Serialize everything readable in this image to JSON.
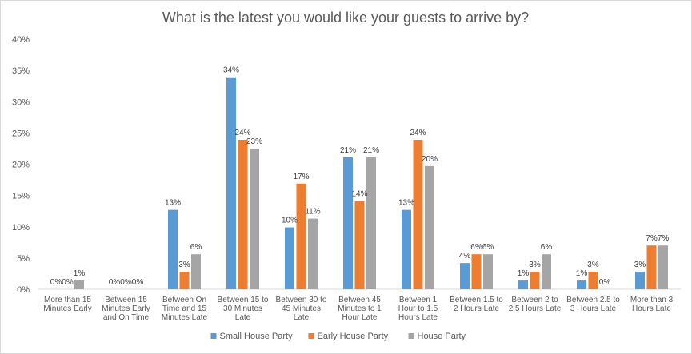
{
  "chart_data": {
    "type": "bar",
    "title": "What is the latest you would like your guests to arrive by?",
    "xlabel": "",
    "ylabel": "",
    "ylim": [
      0,
      40
    ],
    "yticks": [
      0,
      5,
      10,
      15,
      20,
      25,
      30,
      35,
      40
    ],
    "ytick_labels": [
      "0%",
      "5%",
      "10%",
      "15%",
      "20%",
      "25%",
      "30%",
      "35%",
      "40%"
    ],
    "grid": false,
    "legend_position": "bottom",
    "categories": [
      "More than 15 Minutes Early",
      "Between 15 Minutes Early and On Time",
      "Between On Time and 15 Minutes Late",
      "Between 15 to 30 Minutes Late",
      "Between 30 to 45 Minutes Late",
      "Between 45 Minutes to 1 Hour Late",
      "Between 1 Hour to 1.5 Hours Late",
      "Between 1.5 to 2 Hours Late",
      "Between 2 to 2.5 Hours Late",
      "Between 2.5 to 3 Hours Late",
      "More than 3 Hours Late"
    ],
    "category_label_lines": [
      [
        "More than 15",
        "Minutes Early"
      ],
      [
        "Between 15",
        "Minutes Early",
        "and On Time"
      ],
      [
        "Between On",
        "Time and 15",
        "Minutes Late"
      ],
      [
        "Between 15 to",
        "30 Minutes",
        "Late"
      ],
      [
        "Between 30 to",
        "45 Minutes",
        "Late"
      ],
      [
        "Between 45",
        "Minutes to 1",
        "Hour Late"
      ],
      [
        "Between 1",
        "Hour to 1.5",
        "Hours Late"
      ],
      [
        "Between 1.5 to",
        "2 Hours Late"
      ],
      [
        "Between 2 to",
        "2.5 Hours Late"
      ],
      [
        "Between 2.5 to",
        "3 Hours Late"
      ],
      [
        "More than 3",
        "Hours Late"
      ]
    ],
    "series": [
      {
        "name": "Small House Party",
        "color": "#5b9bd5",
        "values": [
          0,
          0,
          12.7,
          33.9,
          9.9,
          21.1,
          12.7,
          4.2,
          1.4,
          1.4,
          2.8
        ],
        "labels": [
          "0%",
          "0%",
          "13%",
          "34%",
          "10%",
          "21%",
          "13%",
          "4%",
          "1%",
          "1%",
          "3%"
        ]
      },
      {
        "name": "Early House Party",
        "color": "#ed7d31",
        "values": [
          0,
          0,
          2.8,
          23.9,
          16.9,
          14.1,
          23.9,
          5.6,
          2.8,
          2.8,
          7.0
        ],
        "labels": [
          "0%",
          "0%",
          "3%",
          "24%",
          "17%",
          "14%",
          "24%",
          "6%",
          "3%",
          "3%",
          "7%"
        ]
      },
      {
        "name": "House Party",
        "color": "#a5a5a5",
        "values": [
          1.4,
          0,
          5.6,
          22.5,
          11.3,
          21.1,
          19.7,
          5.6,
          5.6,
          0,
          7.0
        ],
        "labels": [
          "1%",
          "0%",
          "6%",
          "23%",
          "11%",
          "21%",
          "20%",
          "6%",
          "6%",
          "0%",
          "7%"
        ]
      }
    ]
  }
}
